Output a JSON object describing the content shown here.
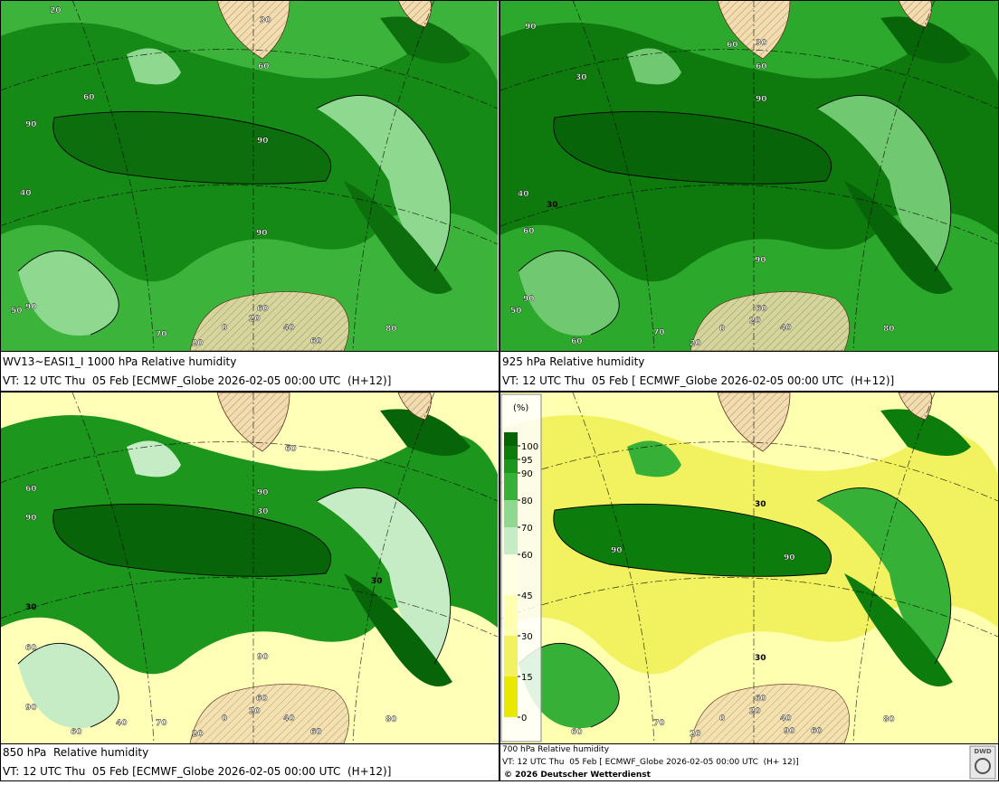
{
  "panels": [
    {
      "caption": "WV13~EASI1_I 1000 hPa Relative humidity",
      "valid_time": "VT: 12 UTC Thu  05 Feb [ECMWF_Globe 2026-02-05 00:00 UTC  (H+12)]",
      "labels": [
        "20",
        "30",
        "60",
        "60",
        "90",
        "90",
        "40",
        "90",
        "50",
        "90",
        "60",
        "0",
        "20",
        "40",
        "60",
        "80",
        "70",
        "20"
      ]
    },
    {
      "caption": "925 hPa Relative humidity",
      "valid_time": "VT: 12 UTC Thu  05 Feb [ ECMWF_Globe 2026-02-05 00:00 UTC  (H+12)]",
      "labels": [
        "90",
        "30",
        "60",
        "60",
        "90",
        "30",
        "40",
        "30",
        "60",
        "90",
        "90",
        "50",
        "60",
        "0",
        "20",
        "40",
        "80",
        "60",
        "70",
        "20"
      ]
    },
    {
      "caption": "850 hPa  Relative humidity",
      "valid_time": "VT: 12 UTC Thu  05 Feb [ECMWF_Globe 2026-02-05 00:00 UTC  (H+12)]",
      "labels": [
        "60",
        "90",
        "30",
        "60",
        "90",
        "30",
        "30",
        "60",
        "90",
        "60",
        "90",
        "60",
        "40",
        "70",
        "20",
        "0",
        "20",
        "40",
        "60",
        "80"
      ]
    },
    {
      "caption": "700 hPa Relative humidity",
      "valid_time": "VT: 12 UTC Thu  05 Feb [ ECMWF_Globe 2026-02-05 00:00 UTC  (H+ 12)]",
      "labels": [
        "30",
        "90",
        "90",
        "30",
        "60",
        "90",
        "60",
        "70",
        "20",
        "0",
        "40",
        "60",
        "80",
        "20"
      ]
    }
  ],
  "legend": {
    "unit": "(%)",
    "ticks": [
      0,
      15,
      30,
      45,
      60,
      70,
      80,
      90,
      95,
      100
    ],
    "colors": [
      "#e8e800",
      "#f2f260",
      "#ffffb0",
      "#ffffe4",
      "#c6ecc6",
      "#8fd88f",
      "#36b036",
      "#1c961c",
      "#0c7c0c"
    ],
    "top_color": "#066406"
  },
  "copyright": "© 2026 Deutscher Wetterdienst",
  "logo": "DWD"
}
